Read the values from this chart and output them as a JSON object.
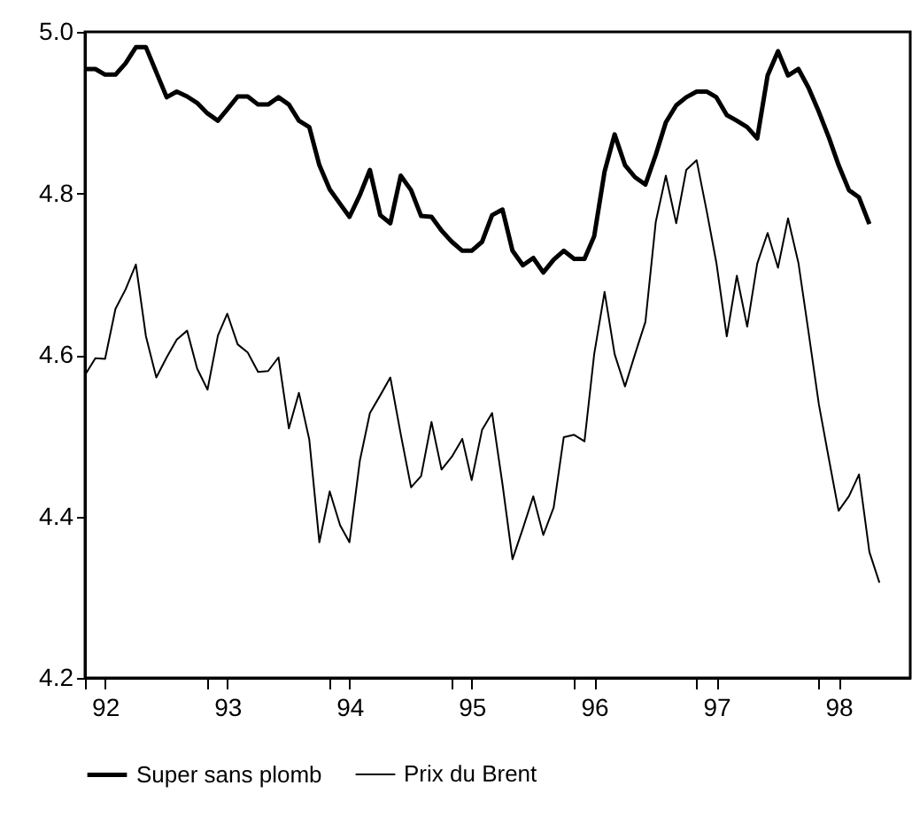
{
  "chart_data": {
    "type": "line",
    "x": [
      "1992-01",
      "1992-02",
      "1992-03",
      "1992-04",
      "1992-05",
      "1992-06",
      "1992-07",
      "1992-08",
      "1992-09",
      "1992-10",
      "1992-11",
      "1992-12",
      "1993-01",
      "1993-02",
      "1993-03",
      "1993-04",
      "1993-05",
      "1993-06",
      "1993-07",
      "1993-08",
      "1993-09",
      "1993-10",
      "1993-11",
      "1993-12",
      "1994-01",
      "1994-02",
      "1994-03",
      "1994-04",
      "1994-05",
      "1994-06",
      "1994-07",
      "1994-08",
      "1994-09",
      "1994-10",
      "1994-11",
      "1994-12",
      "1995-01",
      "1995-02",
      "1995-03",
      "1995-04",
      "1995-05",
      "1995-06",
      "1995-07",
      "1995-08",
      "1995-09",
      "1995-10",
      "1995-11",
      "1995-12",
      "1996-01",
      "1996-02",
      "1996-03",
      "1996-04",
      "1996-05",
      "1996-06",
      "1996-07",
      "1996-08",
      "1996-09",
      "1996-10",
      "1996-11",
      "1996-12",
      "1997-01",
      "1997-02",
      "1997-03",
      "1997-04",
      "1997-05",
      "1997-06",
      "1997-07",
      "1997-08",
      "1997-09",
      "1997-10",
      "1997-11",
      "1997-12",
      "1998-01",
      "1998-02",
      "1998-03",
      "1998-04",
      "1998-05",
      "1998-06",
      "1998-07"
    ],
    "series": [
      {
        "name": "Super sans plomb",
        "color": "#000000",
        "values": [
          4.954,
          4.954,
          4.947,
          4.947,
          4.961,
          4.981,
          4.981,
          4.95,
          4.919,
          4.926,
          4.92,
          4.912,
          4.899,
          4.89,
          4.904,
          4.92,
          4.92,
          4.91,
          4.91,
          4.919,
          4.91,
          4.89,
          4.882,
          4.835,
          4.805,
          4.787,
          4.771,
          4.798,
          4.829,
          4.773,
          4.763,
          4.822,
          4.804,
          4.772,
          4.771,
          4.754,
          4.74,
          4.729,
          4.729,
          4.74,
          4.773,
          4.78,
          4.729,
          4.711,
          4.72,
          4.702,
          4.718,
          4.729,
          4.719,
          4.719,
          4.747,
          4.827,
          4.873,
          4.835,
          4.82,
          4.811,
          4.848,
          4.888,
          4.909,
          4.919,
          4.926,
          4.926,
          4.919,
          4.897,
          4.89,
          4.882,
          4.868,
          4.946,
          4.976,
          4.946,
          4.954,
          4.931,
          4.901,
          4.868,
          4.835,
          4.804,
          4.795,
          4.762,
          null
        ]
      },
      {
        "name": "Prix du Brent",
        "color": "#000000",
        "values": [
          4.575,
          4.596,
          4.595,
          4.657,
          4.681,
          4.712,
          4.623,
          4.572,
          4.597,
          4.619,
          4.63,
          4.583,
          4.557,
          4.624,
          4.651,
          4.613,
          4.603,
          4.579,
          4.58,
          4.597,
          4.509,
          4.553,
          4.495,
          4.368,
          4.431,
          4.389,
          4.368,
          4.469,
          4.528,
          4.55,
          4.572,
          4.502,
          4.436,
          4.45,
          4.517,
          4.458,
          4.474,
          4.496,
          4.445,
          4.507,
          4.528,
          4.44,
          4.347,
          4.385,
          4.425,
          4.377,
          4.411,
          4.498,
          4.501,
          4.493,
          4.601,
          4.678,
          4.601,
          4.561,
          4.601,
          4.641,
          4.765,
          4.822,
          4.763,
          4.829,
          4.841,
          4.776,
          4.714,
          4.623,
          4.698,
          4.635,
          4.713,
          4.751,
          4.708,
          4.769,
          4.714,
          4.629,
          4.539,
          4.469,
          4.407,
          4.425,
          4.452,
          4.356,
          4.318
        ]
      }
    ],
    "xlim": [
      "1992-01",
      "1998-10"
    ],
    "xticks": [
      {
        "value": "1992-01",
        "label": null
      },
      {
        "value": "1992-03",
        "label": "92"
      },
      {
        "value": "1993-01",
        "label": null
      },
      {
        "value": "1993-03",
        "label": "93"
      },
      {
        "value": "1994-01",
        "label": null
      },
      {
        "value": "1994-03",
        "label": "94"
      },
      {
        "value": "1995-01",
        "label": null
      },
      {
        "value": "1995-03",
        "label": "95"
      },
      {
        "value": "1996-01",
        "label": null
      },
      {
        "value": "1996-03",
        "label": "96"
      },
      {
        "value": "1997-01",
        "label": null
      },
      {
        "value": "1997-03",
        "label": "97"
      },
      {
        "value": "1998-01",
        "label": null
      },
      {
        "value": "1998-03",
        "label": "98"
      }
    ],
    "ylim": [
      4.2,
      5.0
    ],
    "yticks": [
      4.2,
      4.4,
      4.6,
      4.8,
      {
        "value": 5.0,
        "label": "5.0"
      }
    ],
    "grid": false,
    "legend": "bottom"
  }
}
